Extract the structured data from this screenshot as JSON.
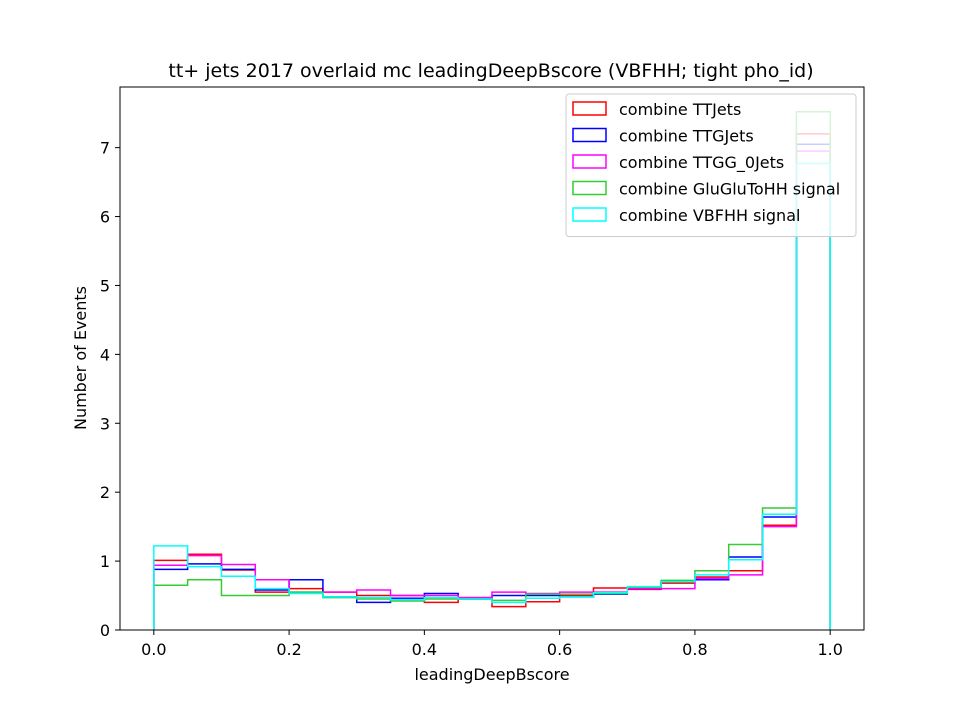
{
  "chart_data": {
    "type": "histogram-step",
    "title": "tt+ jets 2017 overlaid mc leadingDeepBscore (VBFHH; tight pho_id)",
    "xlabel": "leadingDeepBscore",
    "ylabel": "Number of Events",
    "xlim": [
      -0.05,
      1.05
    ],
    "ylim": [
      0,
      7.88
    ],
    "x_ticks": [
      0.0,
      0.2,
      0.4,
      0.6,
      0.8,
      1.0
    ],
    "x_tick_labels": [
      "0.0",
      "0.2",
      "0.4",
      "0.6",
      "0.8",
      "1.0"
    ],
    "y_ticks": [
      0,
      1,
      2,
      3,
      4,
      5,
      6,
      7
    ],
    "y_tick_labels": [
      "0",
      "1",
      "2",
      "3",
      "4",
      "5",
      "6",
      "7"
    ],
    "grid": false,
    "legend_position": "top-right",
    "bin_edges": [
      0.0,
      0.05,
      0.1,
      0.15,
      0.2,
      0.25,
      0.3,
      0.35,
      0.4,
      0.45,
      0.5,
      0.55,
      0.6,
      0.65,
      0.7,
      0.75,
      0.8,
      0.85,
      0.9,
      0.95,
      1.0
    ],
    "series": [
      {
        "name": "combine TTJets",
        "color": "#ff0000",
        "values": [
          1.01,
          1.1,
          0.87,
          0.55,
          0.6,
          0.55,
          0.5,
          0.5,
          0.4,
          0.47,
          0.34,
          0.41,
          0.5,
          0.61,
          0.59,
          0.68,
          0.77,
          0.86,
          1.52,
          7.2
        ]
      },
      {
        "name": "combine TTGJets",
        "color": "#0000ff",
        "values": [
          0.88,
          0.96,
          0.88,
          0.58,
          0.73,
          0.48,
          0.4,
          0.46,
          0.53,
          0.45,
          0.5,
          0.5,
          0.48,
          0.52,
          0.6,
          0.7,
          0.73,
          1.06,
          1.64,
          7.05
        ]
      },
      {
        "name": "combine TTGG_0Jets",
        "color": "#ff00ff",
        "values": [
          0.94,
          1.08,
          0.95,
          0.73,
          0.55,
          0.55,
          0.58,
          0.5,
          0.5,
          0.47,
          0.55,
          0.53,
          0.55,
          0.55,
          0.6,
          0.6,
          0.75,
          0.8,
          1.5,
          6.95
        ]
      },
      {
        "name": "combine GluGluToHH signal",
        "color": "#33cc33",
        "values": [
          0.65,
          0.73,
          0.5,
          0.5,
          0.55,
          0.47,
          0.45,
          0.42,
          0.45,
          0.45,
          0.43,
          0.52,
          0.52,
          0.53,
          0.62,
          0.72,
          0.86,
          1.24,
          1.77,
          7.52
        ]
      },
      {
        "name": "combine VBFHH signal",
        "color": "#00ffff",
        "values": [
          1.22,
          0.92,
          0.78,
          0.6,
          0.53,
          0.48,
          0.47,
          0.44,
          0.47,
          0.45,
          0.4,
          0.46,
          0.48,
          0.54,
          0.63,
          0.7,
          0.8,
          1.02,
          1.68,
          6.77
        ]
      }
    ]
  }
}
